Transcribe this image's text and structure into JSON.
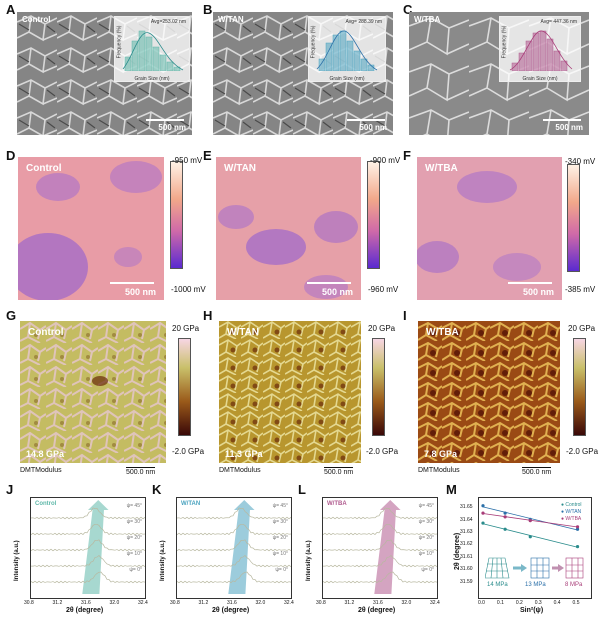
{
  "panels": {
    "A": "A",
    "B": "B",
    "C": "C",
    "D": "D",
    "E": "E",
    "F": "F",
    "G": "G",
    "H": "H",
    "I": "I",
    "J": "J",
    "K": "K",
    "L": "L",
    "M": "M"
  },
  "sem": [
    {
      "title": "Control",
      "avg": "Avg=253.02 nm",
      "scale": "500 nm"
    },
    {
      "title": "W/TAN",
      "avg": "Avg= 288.39 nm",
      "scale": "500 nm"
    },
    {
      "title": "W/TBA",
      "avg": "Avg= 447.36 nm",
      "scale": "500 nm"
    }
  ],
  "inset_labels": {
    "x": "Grain Size (nm)",
    "y": "Frequency (%)"
  },
  "kpfm": [
    {
      "title": "Control",
      "scale": "500 nm",
      "max": "-950 mV",
      "min": "-1000 mV"
    },
    {
      "title": "W/TAN",
      "scale": "500 nm",
      "max": "-900 mV",
      "min": "-960 mV"
    },
    {
      "title": "W/TBA",
      "scale": "500 nm",
      "max": "-340 mV",
      "min": "-385 mV"
    }
  ],
  "afm": [
    {
      "title": "Control",
      "modulus": "14.8 GPa",
      "max": "20 GPa",
      "min": "-2.0 GPa",
      "label": "DMTModulus",
      "scale": "500.0 nm"
    },
    {
      "title": "W/TAN",
      "modulus": "11.3 GPa",
      "max": "20 GPa",
      "min": "-2.0 GPa",
      "label": "DMTModulus",
      "scale": "500.0 nm"
    },
    {
      "title": "W/TBA",
      "modulus": "7.8 GPa",
      "max": "20 GPa",
      "min": "-2.0 GPa",
      "label": "DMTModulus",
      "scale": "500.0 nm"
    }
  ],
  "xrd": {
    "xlabel": "2θ (degree)",
    "ylabel": "Intensity (a.u.)",
    "xticks": [
      "30.8",
      "31.2",
      "31.6",
      "32.0",
      "32.4"
    ],
    "psi": [
      "ψ= 45°",
      "ψ= 30°",
      "ψ= 20°",
      "ψ= 10°",
      "ψ= 0°"
    ],
    "panels": [
      {
        "title": "Control",
        "color": "#5fb8a9"
      },
      {
        "title": "W/TAN",
        "color": "#4aa3bf"
      },
      {
        "title": "W/TBA",
        "color": "#b05a8e"
      }
    ]
  },
  "chart_data": {
    "type": "scatter",
    "title": "",
    "xlabel": "Sin²(ψ)",
    "ylabel": "2θ (degree)",
    "xlim": [
      0,
      0.55
    ],
    "ylim": [
      31.585,
      31.655
    ],
    "xticks": [
      "0.0",
      "0.1",
      "0.2",
      "0.3",
      "0.4",
      "0.5"
    ],
    "yticks": [
      "31.59",
      "31.60",
      "31.61",
      "31.62",
      "31.63",
      "31.64",
      "31.65"
    ],
    "series": [
      {
        "name": "Control",
        "color": "#2a8c8c",
        "x": [
          0,
          0.117,
          0.25,
          0.5
        ],
        "y": [
          31.638,
          31.633,
          31.627,
          31.619
        ]
      },
      {
        "name": "W/TAN",
        "color": "#2a6fa8",
        "x": [
          0,
          0.117,
          0.25,
          0.5
        ],
        "y": [
          31.652,
          31.646,
          31.641,
          31.633
        ]
      },
      {
        "name": "W/TBA",
        "color": "#a83c78",
        "x": [
          0,
          0.117,
          0.25,
          0.5
        ],
        "y": [
          31.646,
          31.643,
          31.64,
          31.635
        ]
      }
    ],
    "annotations": [
      "14 MPa",
      "13 MPa",
      "8 MPa"
    ],
    "annotation_colors": [
      "#2a8c8c",
      "#2a6fa8",
      "#a83c78"
    ]
  }
}
